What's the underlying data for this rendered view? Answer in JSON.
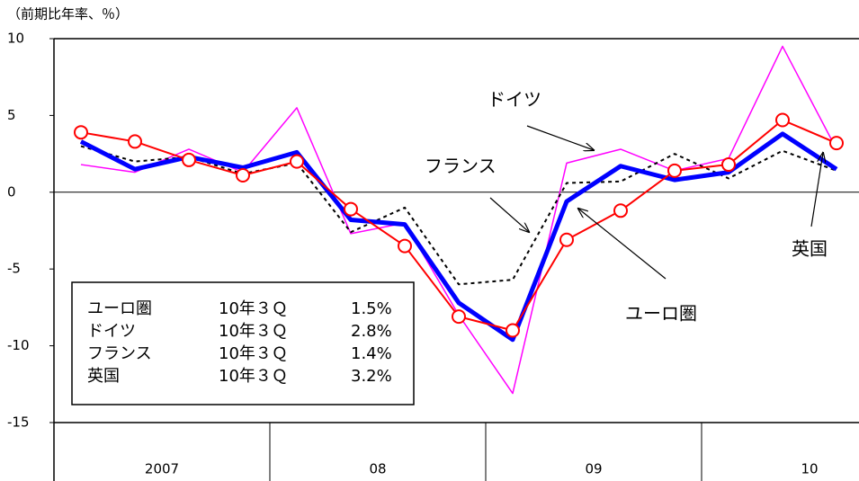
{
  "chart_data": {
    "type": "line",
    "unit_label": "（前期比年率、％）",
    "categories": [
      null,
      null,
      null,
      null,
      null,
      null,
      null,
      null,
      null,
      null,
      null,
      null,
      null,
      null,
      null
    ],
    "year_labels": [
      "2007",
      "08",
      "09",
      "10"
    ],
    "ylim": [
      -15,
      10
    ],
    "yticks": [
      10,
      5,
      0,
      -5,
      -10,
      -15
    ],
    "zero_line": true,
    "series": [
      {
        "name": "ドイツ",
        "color": "#ff00ff",
        "width": 1.5,
        "line_style": "solid",
        "values": [
          1.8,
          1.3,
          2.8,
          1.3,
          5.5,
          -2.7,
          -2.0,
          -8.0,
          -13.1,
          1.9,
          2.8,
          1.4,
          2.2,
          9.5,
          2.8
        ]
      },
      {
        "name": "フランス",
        "color": "#000000",
        "width": 2,
        "line_style": "dotted",
        "values": [
          3.0,
          2.0,
          2.3,
          1.2,
          1.9,
          -2.6,
          -1.0,
          -6.0,
          -5.7,
          0.6,
          0.7,
          2.5,
          0.9,
          2.7,
          1.4
        ]
      },
      {
        "name": "ユーロ圏",
        "color": "#0000ff",
        "width": 5,
        "line_style": "solid",
        "values": [
          3.3,
          1.5,
          2.3,
          1.6,
          2.6,
          -1.8,
          -2.1,
          -7.2,
          -9.6,
          -0.6,
          1.7,
          0.8,
          1.3,
          3.8,
          1.5
        ]
      },
      {
        "name": "英国",
        "color": "#ff0000",
        "width": 2,
        "line_style": "solid",
        "marker": "circle",
        "values": [
          3.9,
          3.3,
          2.1,
          1.1,
          2.0,
          -1.1,
          -3.5,
          -8.1,
          -9.0,
          -3.1,
          -1.2,
          1.4,
          1.8,
          4.7,
          3.2
        ]
      }
    ],
    "legend_table": [
      [
        "ユーロ圏",
        "10年３Ｑ",
        "1.5%"
      ],
      [
        "ドイツ",
        "10年３Ｑ",
        "2.8%"
      ],
      [
        "フランス",
        "10年３Ｑ",
        "1.4%"
      ],
      [
        "英国",
        "10年３Ｑ",
        "3.2%"
      ]
    ]
  }
}
